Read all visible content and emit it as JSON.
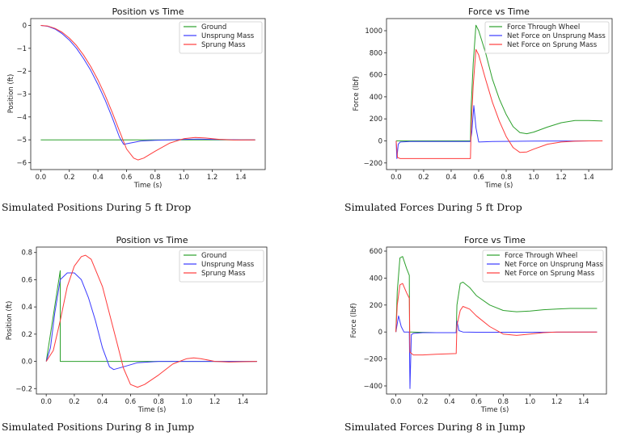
{
  "captions": [
    "Simulated Positions During 5 ft Drop",
    "Simulated Forces During 5 ft Drop",
    "Simulated Positions During 8 in Jump",
    "Simulated Forces During 8 in Jump"
  ],
  "colors": {
    "ground": "#2ca02c",
    "unsprung": "#3a3aff",
    "sprung": "#ff3b3b",
    "wheel": "#2ca02c",
    "net_unsprung": "#3a3aff",
    "net_sprung": "#ff3b3b"
  },
  "chart_data": [
    {
      "type": "line",
      "title": "Position vs Time",
      "xlabel": "Time (s)",
      "ylabel": "Position (ft)",
      "xlim": [
        -0.07,
        1.57
      ],
      "ylim": [
        -6.3,
        0.3
      ],
      "xticks": [
        0.0,
        0.2,
        0.4,
        0.6,
        0.8,
        1.0,
        1.2,
        1.4
      ],
      "xtick_labels": [
        "0.0",
        "0.2",
        "0.4",
        "0.6",
        "0.8",
        "1.0",
        "1.2",
        "1.4"
      ],
      "yticks": [
        0,
        -1,
        -2,
        -3,
        -4,
        -5,
        -6
      ],
      "ytick_labels": [
        "0",
        "−1",
        "−2",
        "−3",
        "−4",
        "−5",
        "−6"
      ],
      "legend": "top-right",
      "series": [
        {
          "name": "Ground",
          "color": "#2ca02c",
          "x": [
            0.0,
            1.5
          ],
          "y": [
            -5.0,
            -5.0
          ]
        },
        {
          "name": "Unsprung Mass",
          "color": "#3a3aff",
          "x": [
            0.0,
            0.05,
            0.1,
            0.15,
            0.2,
            0.25,
            0.3,
            0.35,
            0.4,
            0.45,
            0.5,
            0.55,
            0.58,
            0.62,
            0.7,
            0.8,
            0.9,
            1.0,
            1.1,
            1.2,
            1.3,
            1.4,
            1.5
          ],
          "y": [
            0.0,
            -0.04,
            -0.16,
            -0.36,
            -0.64,
            -1.0,
            -1.45,
            -1.97,
            -2.58,
            -3.26,
            -4.03,
            -4.87,
            -5.2,
            -5.15,
            -5.05,
            -5.02,
            -5.0,
            -4.98,
            -4.97,
            -4.98,
            -4.99,
            -5.0,
            -5.0
          ]
        },
        {
          "name": "Sprung Mass",
          "color": "#ff3b3b",
          "x": [
            0.0,
            0.05,
            0.1,
            0.15,
            0.2,
            0.25,
            0.3,
            0.35,
            0.4,
            0.45,
            0.5,
            0.55,
            0.6,
            0.65,
            0.68,
            0.72,
            0.8,
            0.9,
            1.0,
            1.08,
            1.15,
            1.25,
            1.35,
            1.5
          ],
          "y": [
            0.0,
            -0.03,
            -0.13,
            -0.3,
            -0.55,
            -0.88,
            -1.3,
            -1.8,
            -2.38,
            -3.05,
            -3.8,
            -4.6,
            -5.4,
            -5.8,
            -5.88,
            -5.8,
            -5.5,
            -5.15,
            -4.95,
            -4.9,
            -4.92,
            -4.98,
            -5.01,
            -5.0
          ]
        }
      ]
    },
    {
      "type": "line",
      "title": "Force vs Time",
      "xlabel": "Time (s)",
      "ylabel": "Force (lbf)",
      "xlim": [
        -0.07,
        1.57
      ],
      "ylim": [
        -260,
        1110
      ],
      "xticks": [
        0.0,
        0.2,
        0.4,
        0.6,
        0.8,
        1.0,
        1.2,
        1.4
      ],
      "xtick_labels": [
        "0.0",
        "0.2",
        "0.4",
        "0.6",
        "0.8",
        "1.0",
        "1.2",
        "1.4"
      ],
      "yticks": [
        -200,
        0,
        200,
        400,
        600,
        800,
        1000
      ],
      "ytick_labels": [
        "−200",
        "0",
        "200",
        "400",
        "600",
        "800",
        "1000"
      ],
      "legend": "top-right",
      "series": [
        {
          "name": "Force Through Wheel",
          "color": "#2ca02c",
          "x": [
            0.0,
            0.54,
            0.545,
            0.56,
            0.58,
            0.6,
            0.65,
            0.7,
            0.75,
            0.8,
            0.85,
            0.9,
            0.95,
            1.0,
            1.1,
            1.2,
            1.3,
            1.4,
            1.5
          ],
          "y": [
            0,
            0,
            300,
            700,
            1050,
            1000,
            800,
            560,
            380,
            240,
            130,
            75,
            65,
            80,
            125,
            165,
            185,
            185,
            180
          ]
        },
        {
          "name": "Net Force on Unsprung Mass",
          "color": "#3a3aff",
          "x": [
            0.0,
            0.005,
            0.015,
            0.03,
            0.1,
            0.3,
            0.54,
            0.55,
            0.565,
            0.58,
            0.6,
            0.7,
            1.0,
            1.5
          ],
          "y": [
            0,
            -160,
            -30,
            -10,
            -5,
            -5,
            -5,
            80,
            320,
            120,
            -10,
            -5,
            -2,
            0
          ]
        },
        {
          "name": "Net Force on Sprung Mass",
          "color": "#ff3b3b",
          "x": [
            0.0,
            0.01,
            0.03,
            0.1,
            0.3,
            0.54,
            0.545,
            0.56,
            0.58,
            0.6,
            0.65,
            0.7,
            0.75,
            0.8,
            0.85,
            0.9,
            0.95,
            1.0,
            1.1,
            1.2,
            1.3,
            1.4,
            1.5
          ],
          "y": [
            0,
            -150,
            -160,
            -160,
            -160,
            -160,
            100,
            500,
            830,
            780,
            560,
            350,
            180,
            40,
            -60,
            -105,
            -100,
            -75,
            -30,
            -10,
            -3,
            0,
            0
          ]
        }
      ]
    },
    {
      "type": "line",
      "title": "Position vs Time",
      "xlabel": "Time (s)",
      "ylabel": "Position (ft)",
      "xlim": [
        -0.07,
        1.57
      ],
      "ylim": [
        -0.24,
        0.84
      ],
      "xticks": [
        0.0,
        0.2,
        0.4,
        0.6,
        0.8,
        1.0,
        1.2,
        1.4
      ],
      "xtick_labels": [
        "0.0",
        "0.2",
        "0.4",
        "0.6",
        "0.8",
        "1.0",
        "1.2",
        "1.4"
      ],
      "yticks": [
        -0.2,
        0.0,
        0.2,
        0.4,
        0.6,
        0.8
      ],
      "ytick_labels": [
        "−0.2",
        "0.0",
        "0.2",
        "0.4",
        "0.6",
        "0.8"
      ],
      "legend": "top-right",
      "series": [
        {
          "name": "Ground",
          "color": "#2ca02c",
          "x": [
            0.0,
            0.1,
            0.1,
            1.5
          ],
          "y": [
            0.0,
            0.667,
            0.0,
            0.0
          ]
        },
        {
          "name": "Unsprung Mass",
          "color": "#3a3aff",
          "x": [
            0.0,
            0.03,
            0.06,
            0.1,
            0.15,
            0.2,
            0.25,
            0.3,
            0.35,
            0.4,
            0.45,
            0.48,
            0.55,
            0.65,
            0.8,
            1.0,
            1.2,
            1.5
          ],
          "y": [
            0.0,
            0.1,
            0.35,
            0.6,
            0.65,
            0.65,
            0.6,
            0.47,
            0.3,
            0.1,
            -0.04,
            -0.06,
            -0.04,
            -0.01,
            0.0,
            0.0,
            0.0,
            0.0
          ]
        },
        {
          "name": "Sprung Mass",
          "color": "#ff3b3b",
          "x": [
            0.0,
            0.05,
            0.1,
            0.15,
            0.2,
            0.25,
            0.28,
            0.32,
            0.4,
            0.5,
            0.55,
            0.6,
            0.65,
            0.7,
            0.8,
            0.9,
            1.0,
            1.05,
            1.1,
            1.2,
            1.3,
            1.5
          ],
          "y": [
            0.0,
            0.08,
            0.3,
            0.55,
            0.7,
            0.77,
            0.78,
            0.75,
            0.55,
            0.15,
            -0.05,
            -0.17,
            -0.19,
            -0.17,
            -0.1,
            -0.02,
            0.02,
            0.025,
            0.02,
            0.0,
            -0.005,
            0.0
          ]
        }
      ]
    },
    {
      "type": "line",
      "title": "Force vs Time",
      "xlabel": "Time (s)",
      "ylabel": "Force (lbf)",
      "xlim": [
        -0.07,
        1.57
      ],
      "ylim": [
        -460,
        630
      ],
      "xticks": [
        0.0,
        0.2,
        0.4,
        0.6,
        0.8,
        1.0,
        1.2,
        1.4
      ],
      "xtick_labels": [
        "0.0",
        "0.2",
        "0.4",
        "0.6",
        "0.8",
        "1.0",
        "1.2",
        "1.4"
      ],
      "yticks": [
        -400,
        -200,
        0,
        200,
        400,
        600
      ],
      "ytick_labels": [
        "−400",
        "−200",
        "0",
        "200",
        "400",
        "600"
      ],
      "legend": "top-right",
      "series": [
        {
          "name": "Force Through Wheel",
          "color": "#2ca02c",
          "x": [
            0.0,
            0.01,
            0.03,
            0.05,
            0.08,
            0.1,
            0.102,
            0.3,
            0.45,
            0.455,
            0.48,
            0.5,
            0.55,
            0.6,
            0.7,
            0.8,
            0.9,
            1.0,
            1.1,
            1.2,
            1.3,
            1.4,
            1.5
          ],
          "y": [
            0,
            300,
            550,
            560,
            470,
            420,
            0,
            -5,
            -5,
            200,
            360,
            370,
            330,
            270,
            200,
            160,
            150,
            155,
            165,
            170,
            175,
            175,
            175
          ]
        },
        {
          "name": "Net Force on Unsprung Mass",
          "color": "#3a3aff",
          "x": [
            0.0,
            0.02,
            0.04,
            0.06,
            0.1,
            0.105,
            0.115,
            0.13,
            0.2,
            0.45,
            0.455,
            0.47,
            0.5,
            0.6,
            1.0,
            1.5
          ],
          "y": [
            0,
            120,
            40,
            0,
            0,
            -420,
            -20,
            -10,
            -5,
            -5,
            80,
            10,
            0,
            -2,
            -2,
            0
          ]
        },
        {
          "name": "Net Force on Sprung Mass",
          "color": "#ff3b3b",
          "x": [
            0.0,
            0.01,
            0.03,
            0.05,
            0.08,
            0.1,
            0.105,
            0.13,
            0.2,
            0.3,
            0.45,
            0.455,
            0.48,
            0.5,
            0.55,
            0.6,
            0.7,
            0.8,
            0.9,
            1.0,
            1.1,
            1.2,
            1.5
          ],
          "y": [
            0,
            200,
            350,
            360,
            290,
            250,
            -150,
            -170,
            -170,
            -165,
            -160,
            50,
            160,
            190,
            170,
            120,
            40,
            -15,
            -25,
            -15,
            -5,
            0,
            0
          ]
        }
      ]
    }
  ]
}
